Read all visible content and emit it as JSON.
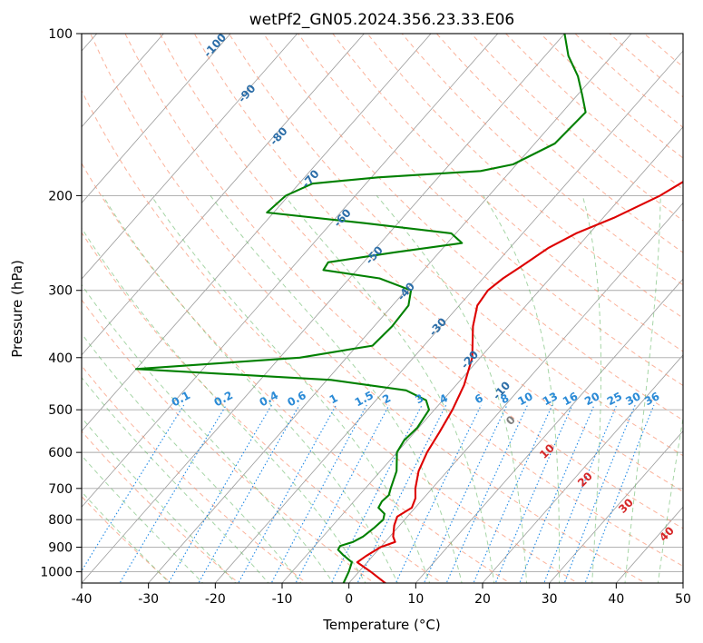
{
  "chart_data": {
    "type": "line",
    "subtype": "skew-t log-p diagram",
    "title": "wetPf2_GN05.2024.356.23.33.E06",
    "xlabel": "Temperature (°C)",
    "ylabel": "Pressure (hPa)",
    "xlim": [
      -40,
      50
    ],
    "ylim": [
      1050,
      100
    ],
    "y_scale": "log",
    "x_ticks": [
      "-40",
      "-30",
      "-20",
      "-10",
      "0",
      "10",
      "20",
      "30",
      "40",
      "50"
    ],
    "y_ticks": [
      "100",
      "200",
      "300",
      "400",
      "500",
      "600",
      "700",
      "800",
      "900",
      "1000"
    ],
    "grid": true,
    "series": [
      {
        "color": "#dd0000",
        "points": [
          [
            1050,
            5.5
          ],
          [
            1000,
            1.8
          ],
          [
            960,
            -1.5
          ],
          [
            935,
            -1.0
          ],
          [
            900,
            0.0
          ],
          [
            880,
            1.5
          ],
          [
            860,
            0.5
          ],
          [
            820,
            -0.8
          ],
          [
            790,
            -1.5
          ],
          [
            760,
            -0.5
          ],
          [
            730,
            -1.2
          ],
          [
            700,
            -2.5
          ],
          [
            650,
            -4.3
          ],
          [
            600,
            -5.5
          ],
          [
            550,
            -6.3
          ],
          [
            500,
            -7.3
          ],
          [
            450,
            -8.8
          ],
          [
            400,
            -11.2
          ],
          [
            350,
            -15.2
          ],
          [
            320,
            -17.3
          ],
          [
            300,
            -17.7
          ],
          [
            285,
            -17.0
          ],
          [
            270,
            -15.8
          ],
          [
            250,
            -14.2
          ],
          [
            235,
            -12.0
          ],
          [
            220,
            -8.4
          ],
          [
            200,
            -4.4
          ],
          [
            180,
            -1.5
          ],
          [
            160,
            2.6
          ],
          [
            140,
            7.1
          ],
          [
            120,
            11.9
          ],
          [
            100,
            17.6
          ]
        ]
      },
      {
        "color": "#008000",
        "points": [
          [
            1050,
            -0.8
          ],
          [
            1000,
            -1.5
          ],
          [
            960,
            -2.3
          ],
          [
            930,
            -4.6
          ],
          [
            910,
            -6.0
          ],
          [
            895,
            -6.2
          ],
          [
            880,
            -4.8
          ],
          [
            860,
            -4.0
          ],
          [
            830,
            -3.5
          ],
          [
            800,
            -3.2
          ],
          [
            780,
            -3.8
          ],
          [
            760,
            -5.5
          ],
          [
            740,
            -5.8
          ],
          [
            720,
            -5.6
          ],
          [
            700,
            -6.2
          ],
          [
            650,
            -7.6
          ],
          [
            600,
            -10.0
          ],
          [
            570,
            -10.5
          ],
          [
            540,
            -10.2
          ],
          [
            500,
            -10.8
          ],
          [
            480,
            -12.5
          ],
          [
            460,
            -16.8
          ],
          [
            440,
            -29.4
          ],
          [
            420,
            -60.0
          ],
          [
            400,
            -37.0
          ],
          [
            380,
            -27.7
          ],
          [
            350,
            -27.3
          ],
          [
            320,
            -27.6
          ],
          [
            300,
            -29.2
          ],
          [
            285,
            -35.5
          ],
          [
            275,
            -45.0
          ],
          [
            266,
            -45.3
          ],
          [
            255,
            -36.7
          ],
          [
            245,
            -27.8
          ],
          [
            235,
            -30.7
          ],
          [
            225,
            -45.0
          ],
          [
            215,
            -61.0
          ],
          [
            200,
            -60.4
          ],
          [
            190,
            -58.0
          ],
          [
            185,
            -49.0
          ],
          [
            180,
            -34.5
          ],
          [
            175,
            -30.5
          ],
          [
            160,
            -27.0
          ],
          [
            140,
            -26.5
          ],
          [
            130,
            -29.3
          ],
          [
            120,
            -32.4
          ],
          [
            110,
            -36.5
          ],
          [
            100,
            -40.0
          ]
        ]
      }
    ],
    "annotations": {
      "dry_adiabats": [
        "-100",
        "-90",
        "-80",
        "-70",
        "-60",
        "-50",
        "-40",
        "-30",
        "-20",
        "-10"
      ],
      "mixing_ratio": [
        "0.1",
        "0.2",
        "0.4",
        "0.6",
        "1",
        "1.5",
        "2",
        "3",
        "4",
        "6",
        "8",
        "10",
        "13",
        "16",
        "20",
        "25",
        "30",
        "36"
      ],
      "moist_adiabats": [
        "0",
        "10",
        "20",
        "30",
        "40"
      ]
    }
  },
  "colors": {
    "temperature": "#dd0000",
    "dewpoint": "#008000",
    "dry_adiabat": "#fa9271",
    "moist_adiabat": "#5cb35c",
    "mixing_ratio": "#1e88e5",
    "isotherm": "#8a8a8a",
    "isobar": "#a8a8a8",
    "dry_label": "#2c6ea8",
    "mixing_label": "#2a8ad6",
    "moist_label": "#d62728",
    "zero_label": "#808080"
  }
}
